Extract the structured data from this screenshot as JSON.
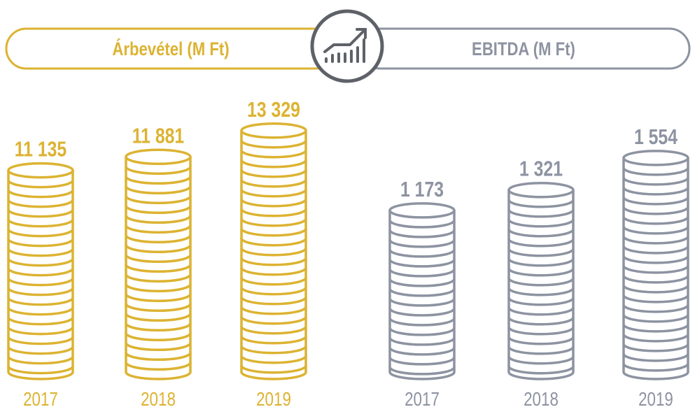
{
  "chart_data": [
    {
      "type": "bar",
      "title": "Árbevétel (M Ft)",
      "categories": [
        "2017",
        "2018",
        "2019"
      ],
      "values": [
        11135,
        11881,
        13329
      ],
      "value_labels": [
        "11 135",
        "11 881",
        "13 329"
      ],
      "color": "#DCB332"
    },
    {
      "type": "bar",
      "title": "EBITDA (M Ft)",
      "categories": [
        "2017",
        "2018",
        "2019"
      ],
      "values": [
        1173,
        1321,
        1554
      ],
      "value_labels": [
        "1 173",
        "1 321",
        "1 554"
      ],
      "color": "#8D93A1"
    }
  ],
  "icon": "growth-chart-icon",
  "icon_color": "#5E6268"
}
